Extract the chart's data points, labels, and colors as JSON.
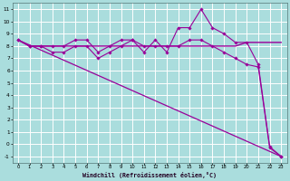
{
  "background_color": "#aadddd",
  "grid_color": "#ffffff",
  "line_color": "#990099",
  "xlabel": "Windchill (Refroidissement éolien,°C)",
  "xlim": [
    -0.5,
    23.5
  ],
  "ylim": [
    -1.5,
    11.5
  ],
  "xticks": [
    0,
    1,
    2,
    3,
    4,
    5,
    6,
    7,
    8,
    9,
    10,
    11,
    12,
    13,
    14,
    15,
    16,
    17,
    18,
    19,
    20,
    21,
    22,
    23
  ],
  "yticks": [
    -1,
    0,
    1,
    2,
    3,
    4,
    5,
    6,
    7,
    8,
    9,
    10,
    11
  ],
  "series": [
    {
      "x": [
        0,
        1,
        2,
        3,
        4,
        5,
        6,
        7,
        8,
        9,
        10,
        11,
        12,
        13,
        14,
        15,
        16,
        17,
        18,
        19,
        20,
        21,
        22,
        23
      ],
      "y": [
        8.5,
        8.0,
        8.0,
        8.0,
        8.0,
        8.0,
        8.0,
        8.0,
        8.0,
        8.0,
        8.0,
        8.0,
        8.0,
        8.0,
        8.0,
        8.0,
        8.0,
        8.0,
        8.0,
        8.0,
        8.3,
        8.3,
        8.3,
        8.3
      ],
      "marker": null,
      "markersize": 0,
      "linewidth": 1.0,
      "linestyle": "-"
    },
    {
      "x": [
        0,
        1,
        2,
        3,
        4,
        5,
        6,
        7,
        8,
        9,
        10,
        11,
        12,
        13,
        14,
        15,
        16,
        17,
        18,
        19,
        20,
        21,
        22,
        23
      ],
      "y": [
        8.5,
        8.0,
        8.0,
        8.0,
        8.0,
        8.5,
        8.5,
        7.5,
        8.0,
        8.5,
        8.5,
        7.5,
        8.5,
        7.5,
        9.5,
        9.5,
        11.0,
        9.5,
        9.0,
        8.3,
        8.3,
        6.5,
        -0.2,
        -1.0
      ],
      "marker": "D",
      "markersize": 1.8,
      "linewidth": 0.8,
      "linestyle": "-"
    },
    {
      "x": [
        0,
        1,
        2,
        3,
        4,
        5,
        6,
        7,
        8,
        9,
        10,
        11,
        12,
        13,
        14,
        15,
        16,
        17,
        18,
        19,
        20,
        21,
        22,
        23
      ],
      "y": [
        8.5,
        8.0,
        8.0,
        7.5,
        7.5,
        8.0,
        8.0,
        7.0,
        7.5,
        8.0,
        8.5,
        8.0,
        8.0,
        8.0,
        8.0,
        8.5,
        8.5,
        8.0,
        7.5,
        7.0,
        6.5,
        6.3,
        -0.3,
        -1.0
      ],
      "marker": "D",
      "markersize": 1.8,
      "linewidth": 0.8,
      "linestyle": "-"
    },
    {
      "x": [
        0,
        23
      ],
      "y": [
        8.5,
        -1.0
      ],
      "marker": null,
      "markersize": 0,
      "linewidth": 0.9,
      "linestyle": "-"
    }
  ]
}
